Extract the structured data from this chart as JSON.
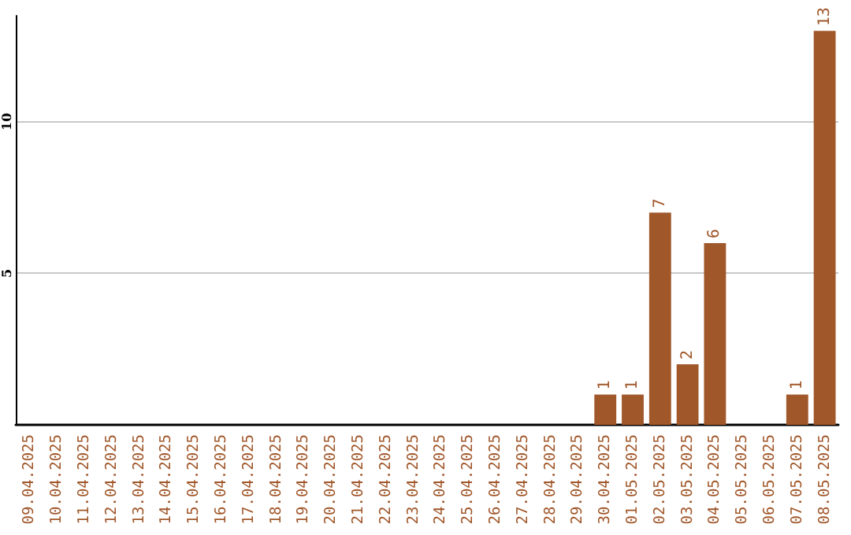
{
  "chart_data": {
    "type": "bar",
    "categories": [
      "09.04.2025",
      "10.04.2025",
      "11.04.2025",
      "12.04.2025",
      "13.04.2025",
      "14.04.2025",
      "15.04.2025",
      "16.04.2025",
      "17.04.2025",
      "18.04.2025",
      "19.04.2025",
      "20.04.2025",
      "21.04.2025",
      "22.04.2025",
      "23.04.2025",
      "24.04.2025",
      "25.04.2025",
      "26.04.2025",
      "27.04.2025",
      "28.04.2025",
      "29.04.2025",
      "30.04.2025",
      "01.05.2025",
      "02.05.2025",
      "03.05.2025",
      "04.05.2025",
      "05.05.2025",
      "06.05.2025",
      "07.05.2025",
      "08.05.2025"
    ],
    "values": [
      0,
      0,
      0,
      0,
      0,
      0,
      0,
      0,
      0,
      0,
      0,
      0,
      0,
      0,
      0,
      0,
      0,
      0,
      0,
      0,
      0,
      1,
      1,
      7,
      2,
      6,
      0,
      0,
      1,
      13
    ],
    "value_labels": [
      null,
      null,
      null,
      null,
      null,
      null,
      null,
      null,
      null,
      null,
      null,
      null,
      null,
      null,
      null,
      null,
      null,
      null,
      null,
      null,
      null,
      "1",
      "1",
      "7",
      "2",
      "6",
      null,
      null,
      "1",
      "13"
    ],
    "color": "#a0572a",
    "ylim": [
      0,
      13.5
    ],
    "yticks": [
      5,
      10
    ],
    "grid": "y"
  }
}
